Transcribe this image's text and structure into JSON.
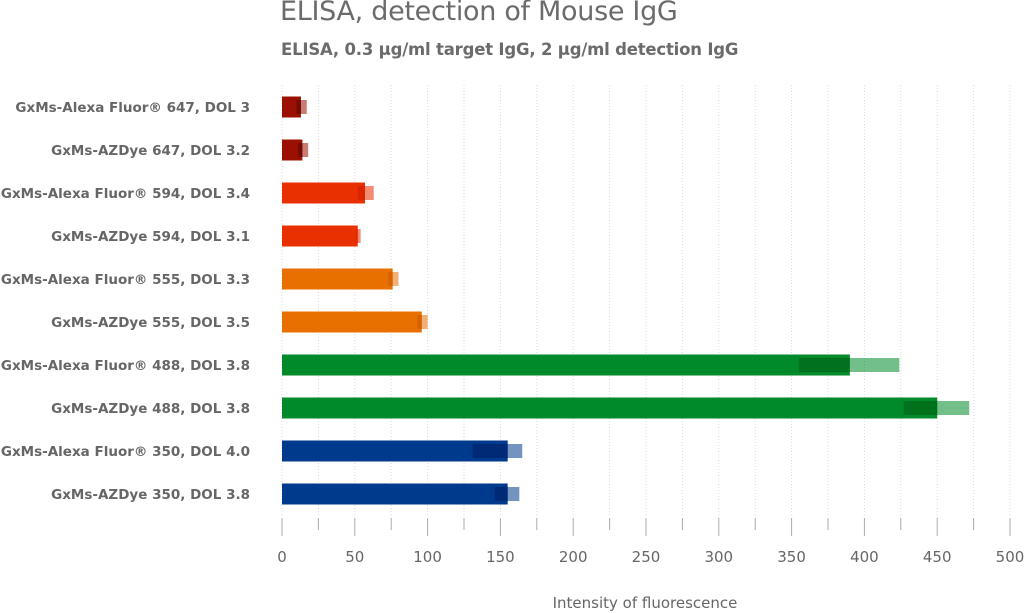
{
  "chart_data": {
    "type": "bar",
    "orientation": "horizontal",
    "title": "ELISA, detection of Mouse IgG",
    "subtitle": "ELISA, 0.3 µg/ml target IgG, 2 µg/ml detection IgG",
    "xlabel": "Intensity of fluorescence",
    "ylabel": "",
    "xlim": [
      0,
      500
    ],
    "xticks": [
      0,
      50,
      100,
      150,
      200,
      250,
      300,
      350,
      400,
      450,
      500
    ],
    "grid": "vertical dotted every 25",
    "categories": [
      "GxMs-Alexa Fluor® 647, DOL 3",
      "GxMs-AZDye 647, DOL 3.2",
      "GxMs-Alexa Fluor® 594, DOL 3.4",
      "GxMs-AZDye 594, DOL 3.1",
      "GxMs-Alexa Fluor® 555, DOL 3.3",
      "GxMs-AZDye 555, DOL 3.5",
      "GxMs-Alexa Fluor® 488, DOL 3.8",
      "GxMs-AZDye 488, DOL 3.8",
      "GxMs-Alexa Fluor® 350, DOL 4.0",
      "GxMs-AZDye 350, DOL 3.8"
    ],
    "values": [
      13,
      14,
      57,
      52,
      76,
      96,
      390,
      450,
      155,
      155
    ],
    "error_low": [
      10,
      11,
      52,
      51,
      73,
      93,
      355,
      427,
      131,
      146
    ],
    "error_high": [
      17,
      18,
      63,
      54,
      80,
      100,
      424,
      472,
      165,
      163
    ],
    "colors": [
      "#9b1000",
      "#9b1000",
      "#e83000",
      "#e83000",
      "#e87000",
      "#e87000",
      "#008a2a",
      "#008a2a",
      "#003a8c",
      "#003a8c"
    ],
    "error_colors": [
      "#5a0800",
      "#5a0800",
      "#d42000",
      "#d42000",
      "#cc5a00",
      "#cc5a00",
      "#006318",
      "#006318",
      "#001f66",
      "#001f66"
    ]
  }
}
